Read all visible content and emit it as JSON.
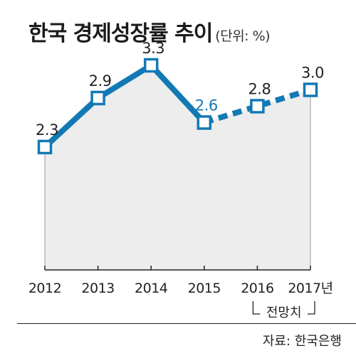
{
  "header": {
    "title": "한국 경제성장률 추이",
    "unit": "(단위: %)"
  },
  "chart_data": {
    "type": "line",
    "title": "한국 경제성장률 추이",
    "unit": "(단위: %)",
    "categories": [
      "2012",
      "2013",
      "2014",
      "2015",
      "2016",
      "2017년"
    ],
    "values": [
      2.3,
      2.9,
      3.3,
      2.6,
      2.8,
      3.0
    ],
    "value_labels": [
      "2.3",
      "2.9",
      "3.3",
      "2.6",
      "2.8",
      "3.0"
    ],
    "forecast_note": "전망치",
    "forecast_from_index": 3,
    "highlight_label_index": 3,
    "ylim": [
      0,
      3.8
    ],
    "grid": false,
    "colors": {
      "line": "#1379b4",
      "area": "#ededed",
      "marker_fill": "#ffffff",
      "highlight_text": "#1379b4"
    }
  },
  "footer": {
    "source": "자료: 한국은행"
  }
}
